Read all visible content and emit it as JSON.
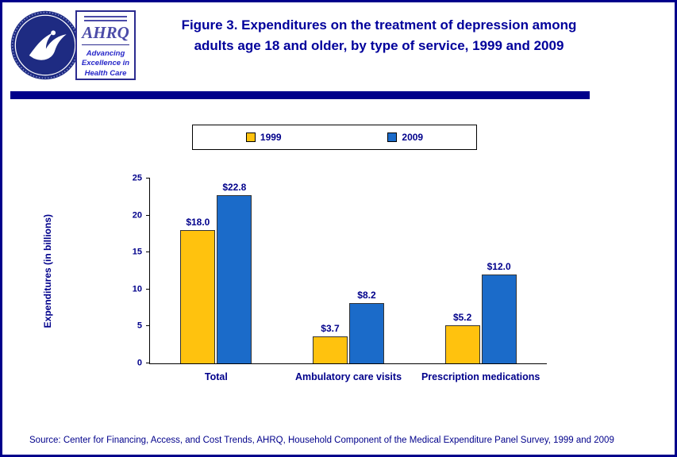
{
  "header": {
    "figure_label": "Figure 3.",
    "title_line1_rest": "Expenditures on the treatment of depression among",
    "title_line2": "adults age 18 and older, by type of service, 1999 and 2009",
    "ahrq": {
      "acronym": "AHRQ",
      "tagline": "Advancing Excellence in Health Care"
    }
  },
  "colors": {
    "navy": "#00008B",
    "title_navy": "#00009B",
    "series_1999": "#FFC20E",
    "series_2009": "#1B6BC9"
  },
  "chart_data": {
    "type": "bar",
    "title": "Expenditures on the treatment of depression among adults age 18 and older, by type of service, 1999 and 2009",
    "categories": [
      "Total",
      "Ambulatory care visits",
      "Prescription medications"
    ],
    "series": [
      {
        "name": "1999",
        "color": "#FFC20E",
        "values": [
          18.0,
          3.7,
          5.2
        ],
        "data_labels": [
          "$18.0",
          "$3.7",
          "$5.2"
        ]
      },
      {
        "name": "2009",
        "color": "#1B6BC9",
        "values": [
          22.8,
          8.2,
          12.0
        ],
        "data_labels": [
          "$22.8",
          "$8.2",
          "$12.0"
        ]
      }
    ],
    "xlabel": "",
    "ylabel": "Expenditures (in billions)",
    "ylim": [
      0,
      25
    ],
    "yticks": [
      0,
      5,
      10,
      15,
      20,
      25
    ],
    "grid": false,
    "legend_position": "top"
  },
  "footer": {
    "source": "Source: Center for Financing, Access, and Cost Trends, AHRQ, Household Component of the Medical Expenditure Panel Survey, 1999 and 2009"
  }
}
